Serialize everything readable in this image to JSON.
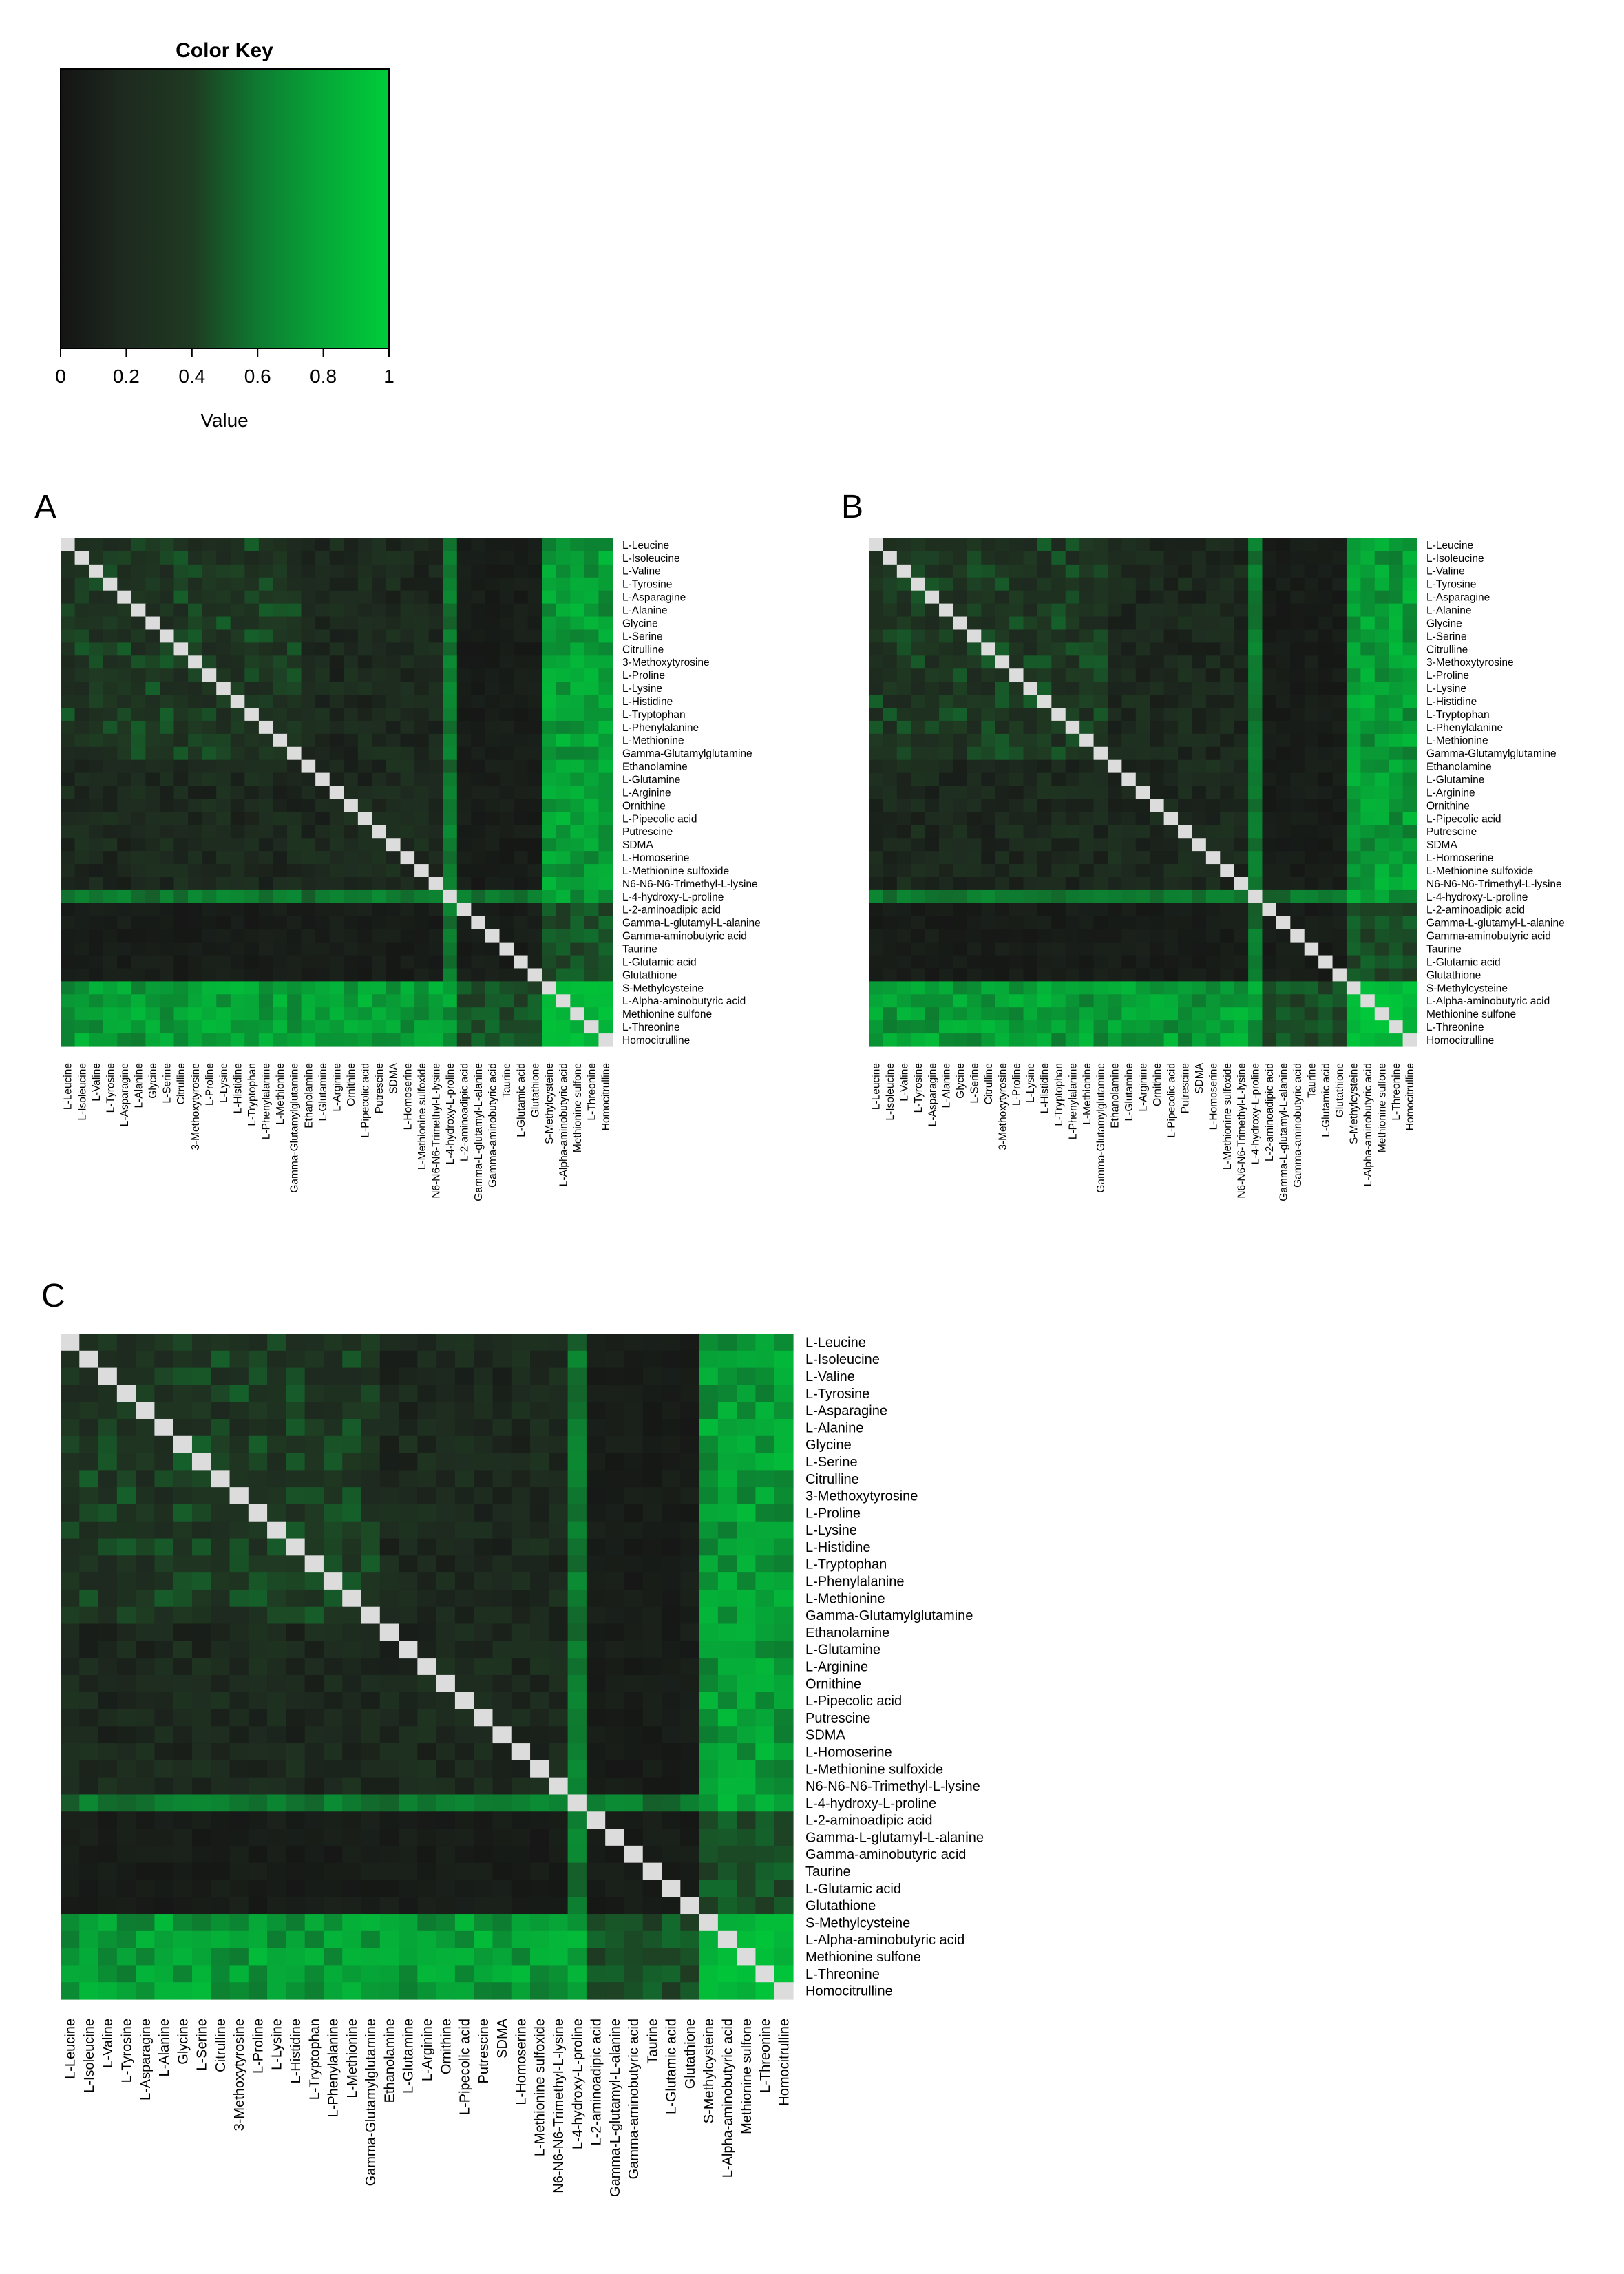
{
  "color_key": {
    "title": "Color Key",
    "xlabel": "Value",
    "ticks": [
      "0",
      "0.2",
      "0.4",
      "0.6",
      "0.8",
      "1"
    ],
    "tick_values": [
      0,
      0.2,
      0.4,
      0.6,
      0.8,
      1
    ],
    "gradient": [
      "#141414",
      "#1e2a1f",
      "#1f3a22",
      "#0e7a30",
      "#06a838",
      "#00cd3a"
    ]
  },
  "panels": [
    {
      "label": "A"
    },
    {
      "label": "B"
    },
    {
      "label": "C"
    }
  ],
  "metabolites": [
    "L-Leucine",
    "L-Isoleucine",
    "L-Valine",
    "L-Tyrosine",
    "L-Asparagine",
    "L-Alanine",
    "Glycine",
    "L-Serine",
    "Citrulline",
    "3-Methoxytyrosine",
    "L-Proline",
    "L-Lysine",
    "L-Histidine",
    "L-Tryptophan",
    "L-Phenylalanine",
    "L-Methionine",
    "Gamma-Glutamylglutamine",
    "Ethanolamine",
    "L-Glutamine",
    "L-Arginine",
    "Ornithine",
    "L-Pipecolic acid",
    "Putrescine",
    "SDMA",
    "L-Homoserine",
    "L-Methionine sulfoxide",
    "N6-N6-N6-Trimethyl-L-lysine",
    "L-4-hydroxy-L-proline",
    "L-2-aminoadipic acid",
    "Gamma-L-glutamyl-L-alanine",
    "Gamma-aminobutyric acid",
    "Taurine",
    "L-Glutamic acid",
    "Glutathione",
    "S-Methylcysteine",
    "L-Alpha-aminobutyric acid",
    "Methionine sulfone",
    "L-Threonine",
    "Homocitrulline"
  ],
  "colors": {
    "diagonal": "#dcdcdc",
    "low": "#141414",
    "high": "#00cd3a"
  },
  "chart_data": [
    {
      "type": "heatmap",
      "title": "Color Key",
      "xlabel": "Value",
      "ylabel": "",
      "xlim": [
        0,
        1
      ],
      "ticks": [
        0,
        0.2,
        0.4,
        0.6,
        0.8,
        1
      ]
    },
    {
      "type": "heatmap",
      "title": "A",
      "note": "symmetric 39x39 correlation-style matrix; rows/cols = metabolites",
      "diagonal": 1,
      "seed": 11
    },
    {
      "type": "heatmap",
      "title": "B",
      "note": "symmetric 39x39 correlation-style matrix; rows/cols = metabolites",
      "diagonal": 1,
      "seed": 23
    },
    {
      "type": "heatmap",
      "title": "C",
      "note": "symmetric 39x39 correlation-style matrix; rows/cols = metabolites",
      "diagonal": 1,
      "seed": 37
    }
  ]
}
